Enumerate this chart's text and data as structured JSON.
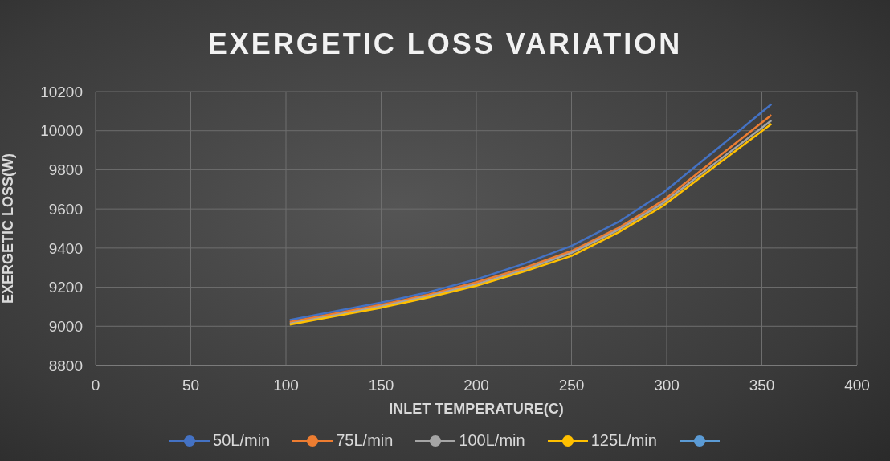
{
  "chart_data": {
    "type": "line",
    "title": "EXERGETIC LOSS VARIATION",
    "xlabel": "INLET TEMPERATURE(C)",
    "ylabel": "EXERGETIC LOSS(W)",
    "x": [
      102,
      125,
      150,
      175,
      200,
      225,
      250,
      275,
      298,
      325,
      355
    ],
    "series": [
      {
        "name": "50L/min",
        "color": "#4472c4",
        "values": [
          9032,
          9075,
          9121,
          9175,
          9240,
          9320,
          9411,
          9535,
          9682,
          9895,
          10135
        ]
      },
      {
        "name": "75L/min",
        "color": "#ed7d31",
        "values": [
          9022,
          9064,
          9110,
          9162,
          9225,
          9298,
          9385,
          9505,
          9642,
          9850,
          10080
        ]
      },
      {
        "name": "100L/min",
        "color": "#a5a5a5",
        "values": [
          9014,
          9056,
          9102,
          9155,
          9215,
          9288,
          9375,
          9495,
          9629,
          9830,
          10052
        ]
      },
      {
        "name": "125L/min",
        "color": "#ffc000",
        "values": [
          9008,
          9050,
          9095,
          9148,
          9207,
          9280,
          9360,
          9482,
          9615,
          9815,
          10035
        ]
      },
      {
        "color": "#5b9bd5",
        "values": [
          null,
          null,
          null,
          null,
          null,
          null,
          null,
          null,
          null,
          null,
          null
        ]
      }
    ],
    "xlim": [
      0,
      400
    ],
    "xticks": [
      0,
      50,
      100,
      150,
      200,
      250,
      300,
      350,
      400
    ],
    "ylim": [
      8800,
      10200
    ],
    "yticks": [
      8800,
      9000,
      9200,
      9400,
      9600,
      9800,
      10000,
      10200
    ],
    "grid": true,
    "legend": "bottom",
    "marker": "none",
    "line_style": "solid"
  }
}
